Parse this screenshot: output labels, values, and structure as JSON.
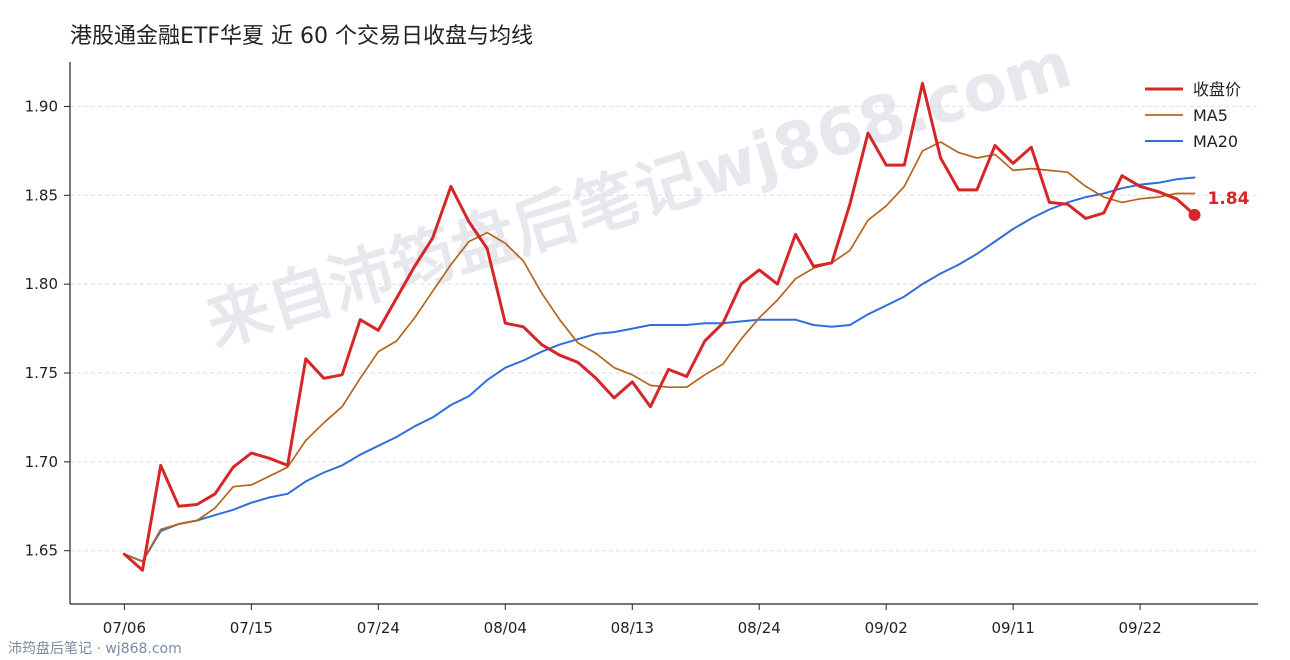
{
  "title": "港股通金融ETF华夏 近 60 个交易日收盘与均线",
  "watermark": "来自沛筠盘后笔记wj868.com",
  "footer": "沛筠盘后笔记 · wj868.com",
  "colors": {
    "close": "#d62728",
    "ma5": "#b5651d",
    "ma20": "#2f6fdd",
    "grid": "#dddddd",
    "watermark": "#e6e8ee"
  },
  "chart_data": {
    "type": "line",
    "title": "港股通金融ETF华夏 近 60 个交易日收盘与均线",
    "xlabel": "",
    "ylabel": "",
    "ylim": [
      1.62,
      1.925
    ],
    "yticks": [
      1.65,
      1.7,
      1.75,
      1.8,
      1.85,
      1.9
    ],
    "ytick_labels": [
      "1.65",
      "1.70",
      "1.75",
      "1.80",
      "1.85",
      "1.90"
    ],
    "xticks": [
      {
        "index": 0,
        "label": "07/06"
      },
      {
        "index": 7,
        "label": "07/15"
      },
      {
        "index": 14,
        "label": "07/24"
      },
      {
        "index": 21,
        "label": "08/04"
      },
      {
        "index": 28,
        "label": "08/13"
      },
      {
        "index": 35,
        "label": "08/24"
      },
      {
        "index": 42,
        "label": "09/02"
      },
      {
        "index": 49,
        "label": "09/11"
      },
      {
        "index": 56,
        "label": "09/22"
      }
    ],
    "xlim": [
      -3,
      62.5
    ],
    "grid": true,
    "legend_position": "top-right",
    "last_value_label": "1.84",
    "series": [
      {
        "name": "收盘价",
        "values": [
          1.648,
          1.639,
          1.698,
          1.675,
          1.676,
          1.682,
          1.697,
          1.705,
          1.702,
          1.698,
          1.758,
          1.747,
          1.749,
          1.78,
          1.774,
          1.792,
          1.81,
          1.826,
          1.855,
          1.835,
          1.82,
          1.778,
          1.776,
          1.766,
          1.76,
          1.756,
          1.747,
          1.736,
          1.745,
          1.731,
          1.752,
          1.748,
          1.768,
          1.778,
          1.8,
          1.808,
          1.8,
          1.828,
          1.81,
          1.812,
          1.845,
          1.885,
          1.867,
          1.867,
          1.913,
          1.871,
          1.853,
          1.853,
          1.878,
          1.868,
          1.877,
          1.846,
          1.845,
          1.837,
          1.84,
          1.861,
          1.855,
          1.852,
          1.848,
          1.839
        ]
      },
      {
        "name": "MA5",
        "values": [
          1.648,
          1.644,
          1.662,
          1.665,
          1.667,
          1.674,
          1.686,
          1.687,
          1.692,
          1.697,
          1.712,
          1.722,
          1.731,
          1.747,
          1.762,
          1.768,
          1.781,
          1.796,
          1.811,
          1.824,
          1.829,
          1.823,
          1.813,
          1.795,
          1.78,
          1.767,
          1.761,
          1.753,
          1.749,
          1.743,
          1.742,
          1.742,
          1.749,
          1.755,
          1.769,
          1.781,
          1.791,
          1.803,
          1.809,
          1.812,
          1.819,
          1.836,
          1.844,
          1.855,
          1.875,
          1.88,
          1.874,
          1.871,
          1.873,
          1.864,
          1.865,
          1.864,
          1.863,
          1.855,
          1.849,
          1.846,
          1.848,
          1.849,
          1.851,
          1.851
        ]
      },
      {
        "name": "MA20",
        "values": [
          1.648,
          1.644,
          1.661,
          1.665,
          1.667,
          1.67,
          1.673,
          1.677,
          1.68,
          1.682,
          1.689,
          1.694,
          1.698,
          1.704,
          1.709,
          1.714,
          1.72,
          1.725,
          1.732,
          1.737,
          1.746,
          1.753,
          1.757,
          1.762,
          1.766,
          1.769,
          1.772,
          1.773,
          1.775,
          1.777,
          1.777,
          1.777,
          1.778,
          1.778,
          1.779,
          1.78,
          1.78,
          1.78,
          1.777,
          1.776,
          1.777,
          1.783,
          1.788,
          1.793,
          1.8,
          1.806,
          1.811,
          1.817,
          1.824,
          1.831,
          1.837,
          1.842,
          1.846,
          1.849,
          1.851,
          1.854,
          1.856,
          1.857,
          1.859,
          1.86
        ]
      }
    ]
  }
}
